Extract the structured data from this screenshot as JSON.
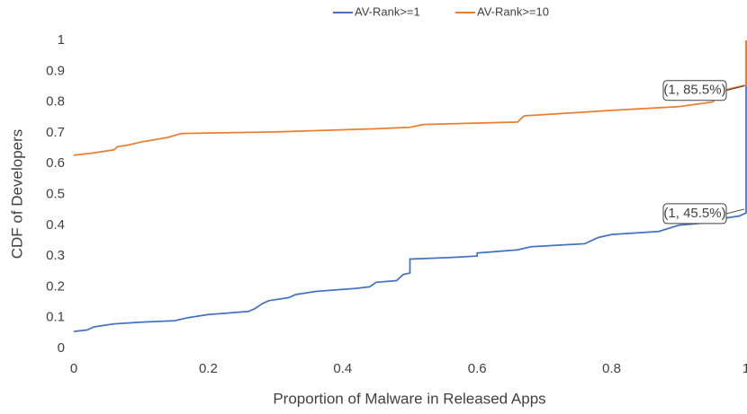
{
  "chart_data": {
    "type": "line",
    "xlabel": "Proportion of Malware in Released Apps",
    "ylabel": "CDF of Developers",
    "xlim": [
      0,
      1
    ],
    "xticks": [
      0,
      0.2,
      0.4,
      0.6,
      0.8,
      1
    ],
    "ylim": [
      0,
      1
    ],
    "yticks": [
      0,
      0.1,
      0.2,
      0.3,
      0.4,
      0.5,
      0.6,
      0.7,
      0.8,
      0.9,
      1
    ],
    "grid": false,
    "legend": "top",
    "series": [
      {
        "name": "AV-Rank>=1",
        "color": "#4472c4",
        "x": [
          0,
          0.02,
          0.03,
          0.06,
          0.1,
          0.15,
          0.17,
          0.2,
          0.26,
          0.27,
          0.28,
          0.29,
          0.32,
          0.33,
          0.36,
          0.42,
          0.44,
          0.45,
          0.48,
          0.49,
          0.5,
          0.5,
          0.56,
          0.6,
          0.6,
          0.66,
          0.68,
          0.76,
          0.78,
          0.8,
          0.87,
          0.9,
          0.95,
          0.96,
          0.99,
          1,
          1,
          1
        ],
        "values": [
          0.055,
          0.06,
          0.07,
          0.08,
          0.085,
          0.09,
          0.1,
          0.11,
          0.12,
          0.13,
          0.145,
          0.155,
          0.165,
          0.175,
          0.185,
          0.195,
          0.2,
          0.215,
          0.22,
          0.24,
          0.245,
          0.29,
          0.295,
          0.3,
          0.31,
          0.32,
          0.33,
          0.34,
          0.36,
          0.37,
          0.38,
          0.4,
          0.41,
          0.42,
          0.43,
          0.44,
          0.455,
          1
        ]
      },
      {
        "name": "AV-Rank>=10",
        "color": "#ed7d31",
        "x": [
          0,
          0.03,
          0.06,
          0.065,
          0.08,
          0.1,
          0.14,
          0.16,
          0.3,
          0.45,
          0.5,
          0.52,
          0.66,
          0.67,
          0.8,
          0.9,
          0.95,
          0.97,
          0.99,
          1,
          1
        ],
        "values": [
          0.627,
          0.635,
          0.645,
          0.655,
          0.66,
          0.67,
          0.685,
          0.698,
          0.703,
          0.713,
          0.718,
          0.727,
          0.735,
          0.755,
          0.773,
          0.785,
          0.8,
          0.84,
          0.85,
          0.855,
          1
        ]
      }
    ],
    "annotations": [
      {
        "text": "(1, 85.5%)",
        "x": 1,
        "y": 0.855
      },
      {
        "text": "(1, 45.5%)",
        "x": 1,
        "y": 0.455
      }
    ]
  }
}
